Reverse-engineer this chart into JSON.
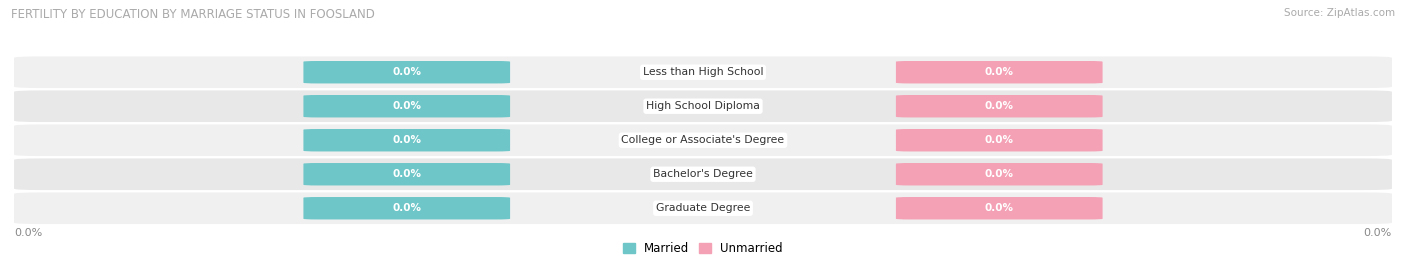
{
  "title": "FERTILITY BY EDUCATION BY MARRIAGE STATUS IN FOOSLAND",
  "source": "Source: ZipAtlas.com",
  "categories": [
    "Less than High School",
    "High School Diploma",
    "College or Associate's Degree",
    "Bachelor's Degree",
    "Graduate Degree"
  ],
  "married_values": [
    0.0,
    0.0,
    0.0,
    0.0,
    0.0
  ],
  "unmarried_values": [
    0.0,
    0.0,
    0.0,
    0.0,
    0.0
  ],
  "married_color": "#6ec6c8",
  "unmarried_color": "#f4a0b5",
  "row_color_odd": "#f0f0f0",
  "row_color_even": "#e8e8e8",
  "label_color": "#ffffff",
  "title_color": "#aaaaaa",
  "axis_label_color": "#888888",
  "figsize": [
    14.06,
    2.69
  ],
  "dpi": 100
}
